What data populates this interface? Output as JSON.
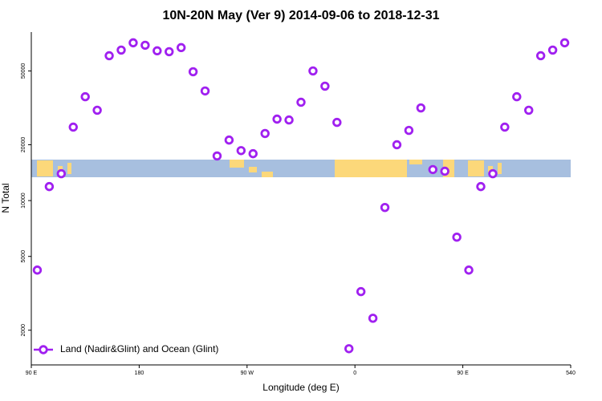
{
  "chart_data": {
    "type": "scatter",
    "title": "10N-20N May (Ver 9)   2014-09-06 to 2018-12-31",
    "xlabel": "Longitude (deg E)",
    "ylabel": "N Total",
    "xlim": [
      90,
      540
    ],
    "ylim": [
      1300,
      81000
    ],
    "log_y": true,
    "legend": "lower left",
    "xticks": [
      {
        "value": 90,
        "label": "90 E"
      },
      180,
      {
        "value": 270,
        "label": "90 W"
      },
      {
        "value": 360,
        "label": "0"
      },
      {
        "value": 450,
        "label": "90 E"
      },
      540
    ],
    "yticks": [
      2000,
      5000,
      10000,
      20000,
      50000
    ],
    "series": [
      {
        "name": "Land (Nadir&Glint) and Ocean (Glint)",
        "color": "#a020f0",
        "x": [
          95,
          105,
          115,
          125,
          135,
          145,
          155,
          165,
          175,
          185,
          195,
          205,
          215,
          225,
          235,
          245,
          255,
          265,
          275,
          285,
          295,
          305,
          315,
          325,
          335,
          345,
          355,
          365,
          375,
          385,
          395,
          405,
          415,
          425,
          435,
          445,
          455,
          465,
          475,
          485,
          495,
          505,
          515,
          525,
          535
        ],
        "values": [
          4220,
          11900,
          13960,
          24900,
          36300,
          30700,
          60400,
          64800,
          70900,
          68800,
          64200,
          63500,
          66800,
          49500,
          39000,
          17400,
          21200,
          18600,
          17900,
          23000,
          27500,
          27200,
          33900,
          50000,
          41400,
          26400,
          1590,
          3230,
          2320,
          9180,
          20000,
          23900,
          31600,
          14700,
          14400,
          6350,
          4220,
          11900,
          13960,
          24900,
          36300,
          30700,
          60400,
          64800,
          70900
        ]
      }
    ]
  }
}
